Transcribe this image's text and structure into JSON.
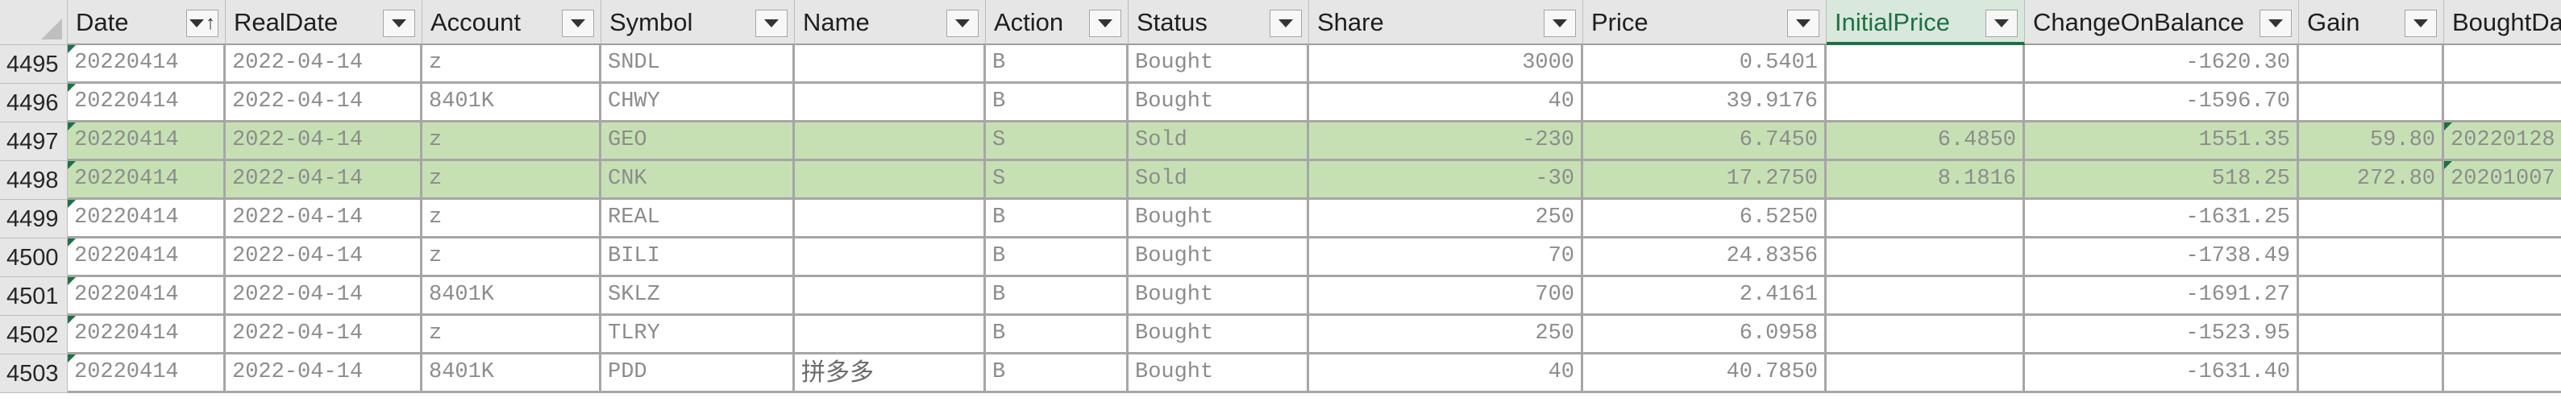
{
  "columns": [
    {
      "label": "Date",
      "filter": "sort-ascending-filter-icon"
    },
    {
      "label": "RealDate",
      "filter": "dropdown-icon"
    },
    {
      "label": "Account",
      "filter": "dropdown-icon"
    },
    {
      "label": "Symbol",
      "filter": "dropdown-icon"
    },
    {
      "label": "Name",
      "filter": "dropdown-icon"
    },
    {
      "label": "Action",
      "filter": "dropdown-icon"
    },
    {
      "label": "Status",
      "filter": "dropdown-icon"
    },
    {
      "label": "Share",
      "filter": "dropdown-icon"
    },
    {
      "label": "Price",
      "filter": "dropdown-icon"
    },
    {
      "label": "InitialPrice",
      "filter": "dropdown-icon",
      "active": true
    },
    {
      "label": "ChangeOnBalance",
      "filter": "dropdown-icon"
    },
    {
      "label": "Gain",
      "filter": "dropdown-icon"
    },
    {
      "label": "BoughtDate",
      "filter": "dropdown-icon"
    }
  ],
  "rows": [
    {
      "row": "4495",
      "highlight": false,
      "cells": [
        "20220414",
        "2022-04-14",
        "z",
        "SNDL",
        "",
        "B",
        "Bought",
        "3000",
        "0.5401",
        "",
        "-1620.30",
        "",
        ""
      ]
    },
    {
      "row": "4496",
      "highlight": false,
      "cells": [
        "20220414",
        "2022-04-14",
        "8401K",
        "CHWY",
        "",
        "B",
        "Bought",
        "40",
        "39.9176",
        "",
        "-1596.70",
        "",
        ""
      ]
    },
    {
      "row": "4497",
      "highlight": true,
      "cells": [
        "20220414",
        "2022-04-14",
        "z",
        "GEO",
        "",
        "S",
        "Sold",
        "-230",
        "6.7450",
        "6.4850",
        "1551.35",
        "59.80",
        "20220128"
      ]
    },
    {
      "row": "4498",
      "highlight": true,
      "cells": [
        "20220414",
        "2022-04-14",
        "z",
        "CNK",
        "",
        "S",
        "Sold",
        "-30",
        "17.2750",
        "8.1816",
        "518.25",
        "272.80",
        "20201007"
      ]
    },
    {
      "row": "4499",
      "highlight": false,
      "cells": [
        "20220414",
        "2022-04-14",
        "z",
        "REAL",
        "",
        "B",
        "Bought",
        "250",
        "6.5250",
        "",
        "-1631.25",
        "",
        ""
      ]
    },
    {
      "row": "4500",
      "highlight": false,
      "cells": [
        "20220414",
        "2022-04-14",
        "z",
        "BILI",
        "",
        "B",
        "Bought",
        "70",
        "24.8356",
        "",
        "-1738.49",
        "",
        ""
      ]
    },
    {
      "row": "4501",
      "highlight": false,
      "cells": [
        "20220414",
        "2022-04-14",
        "8401K",
        "SKLZ",
        "",
        "B",
        "Bought",
        "700",
        "2.4161",
        "",
        "-1691.27",
        "",
        ""
      ]
    },
    {
      "row": "4502",
      "highlight": false,
      "cells": [
        "20220414",
        "2022-04-14",
        "z",
        "TLRY",
        "",
        "B",
        "Bought",
        "250",
        "6.0958",
        "",
        "-1523.95",
        "",
        ""
      ]
    },
    {
      "row": "4503",
      "highlight": false,
      "cells": [
        "20220414",
        "2022-04-14",
        "8401K",
        "PDD",
        "拼多多",
        "B",
        "Bought",
        "40",
        "40.7850",
        "",
        "-1631.40",
        "",
        ""
      ]
    }
  ],
  "colors": {
    "header_bg": "#e6e6e6",
    "highlight_row": "#c6e0b4",
    "active_header": "#1e7145",
    "grid": "#a6a6a6"
  }
}
